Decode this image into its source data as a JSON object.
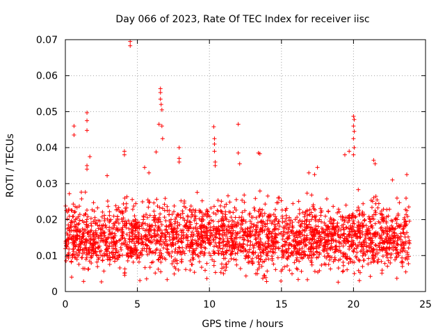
{
  "chart_data": {
    "type": "scatter",
    "title": "Day 066 of 2023, Rate Of TEC Index for receiver iisc",
    "xlabel": "GPS time / hours",
    "ylabel": "ROTI / TECUs",
    "xlim": [
      0,
      25
    ],
    "ylim": [
      0,
      0.07
    ],
    "xticks": [
      "0",
      "5",
      "10",
      "15",
      "20",
      "25"
    ],
    "yticks": [
      "0",
      "0.01",
      "0.02",
      "0.03",
      "0.04",
      "0.05",
      "0.06",
      "0.07"
    ],
    "xtick_values": [
      0,
      5,
      10,
      15,
      20,
      25
    ],
    "ytick_values": [
      0,
      0.01,
      0.02,
      0.03,
      0.04,
      0.05,
      0.06,
      0.07
    ],
    "grid": true,
    "marker": "+",
    "series": [
      {
        "name": "ROTI",
        "color": "#ff0000",
        "x_range": [
          0.0,
          23.9
        ],
        "typical_range": [
          0.005,
          0.028
        ],
        "outliers": [
          {
            "x": 0.6,
            "y": 0.046
          },
          {
            "x": 0.6,
            "y": 0.0435
          },
          {
            "x": 1.5,
            "y": 0.0497
          },
          {
            "x": 1.5,
            "y": 0.0475
          },
          {
            "x": 1.5,
            "y": 0.0448
          },
          {
            "x": 1.5,
            "y": 0.035
          },
          {
            "x": 1.5,
            "y": 0.034
          },
          {
            "x": 1.7,
            "y": 0.0375
          },
          {
            "x": 2.9,
            "y": 0.0322
          },
          {
            "x": 4.1,
            "y": 0.039
          },
          {
            "x": 4.1,
            "y": 0.038
          },
          {
            "x": 4.5,
            "y": 0.0695
          },
          {
            "x": 4.5,
            "y": 0.0683
          },
          {
            "x": 5.5,
            "y": 0.0345
          },
          {
            "x": 5.8,
            "y": 0.033
          },
          {
            "x": 6.3,
            "y": 0.0388
          },
          {
            "x": 6.5,
            "y": 0.0465
          },
          {
            "x": 6.6,
            "y": 0.0564
          },
          {
            "x": 6.6,
            "y": 0.0553
          },
          {
            "x": 6.6,
            "y": 0.0535
          },
          {
            "x": 6.65,
            "y": 0.052
          },
          {
            "x": 6.7,
            "y": 0.0505
          },
          {
            "x": 6.7,
            "y": 0.046
          },
          {
            "x": 6.75,
            "y": 0.0425
          },
          {
            "x": 7.9,
            "y": 0.04
          },
          {
            "x": 7.9,
            "y": 0.037
          },
          {
            "x": 7.9,
            "y": 0.036
          },
          {
            "x": 10.3,
            "y": 0.0458
          },
          {
            "x": 10.35,
            "y": 0.0425
          },
          {
            "x": 10.35,
            "y": 0.041
          },
          {
            "x": 10.35,
            "y": 0.039
          },
          {
            "x": 10.4,
            "y": 0.036
          },
          {
            "x": 10.4,
            "y": 0.035
          },
          {
            "x": 12.0,
            "y": 0.0465
          },
          {
            "x": 12.0,
            "y": 0.0385
          },
          {
            "x": 12.1,
            "y": 0.0355
          },
          {
            "x": 13.4,
            "y": 0.0385
          },
          {
            "x": 13.5,
            "y": 0.0383
          },
          {
            "x": 16.9,
            "y": 0.033
          },
          {
            "x": 17.3,
            "y": 0.0325
          },
          {
            "x": 17.5,
            "y": 0.0345
          },
          {
            "x": 19.4,
            "y": 0.038
          },
          {
            "x": 19.7,
            "y": 0.039
          },
          {
            "x": 20.0,
            "y": 0.0487
          },
          {
            "x": 20.05,
            "y": 0.0478
          },
          {
            "x": 20.0,
            "y": 0.046
          },
          {
            "x": 20.05,
            "y": 0.0445
          },
          {
            "x": 20.0,
            "y": 0.0425
          },
          {
            "x": 20.05,
            "y": 0.04
          },
          {
            "x": 20.0,
            "y": 0.038
          },
          {
            "x": 21.4,
            "y": 0.0365
          },
          {
            "x": 21.5,
            "y": 0.0355
          },
          {
            "x": 22.7,
            "y": 0.031
          },
          {
            "x": 23.7,
            "y": 0.0325
          }
        ]
      }
    ]
  }
}
